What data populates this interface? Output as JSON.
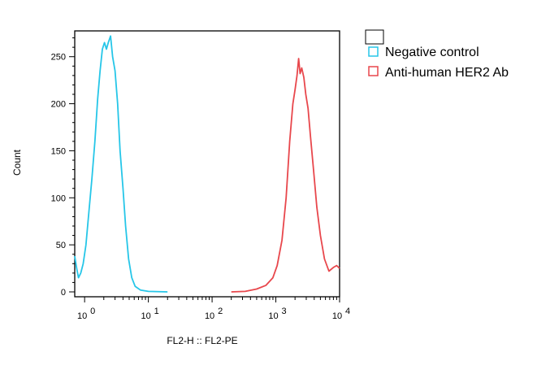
{
  "chart_data": {
    "type": "line",
    "title": "",
    "xlabel": "FL2-H :: FL2-PE",
    "ylabel": "Count",
    "x_scale": "log",
    "xlim": [
      0.7,
      10000
    ],
    "ylim": [
      0,
      280
    ],
    "y_ticks": [
      0,
      50,
      100,
      150,
      200,
      250
    ],
    "y_tick_labels": [
      "0",
      "50",
      "100",
      "150",
      "200",
      "250"
    ],
    "x_ticks": [
      1,
      10,
      100,
      1000,
      10000
    ],
    "x_tick_base": "10",
    "x_tick_exponents": [
      "0",
      "1",
      "2",
      "3",
      "4"
    ],
    "grid": false,
    "legend": "right, outside plot",
    "series": [
      {
        "name": "Negative control",
        "color": "#26C6E8",
        "points": [
          [
            0.7,
            38
          ],
          [
            0.75,
            25
          ],
          [
            0.8,
            15
          ],
          [
            0.87,
            20
          ],
          [
            0.95,
            30
          ],
          [
            1.05,
            50
          ],
          [
            1.15,
            80
          ],
          [
            1.3,
            120
          ],
          [
            1.45,
            160
          ],
          [
            1.6,
            205
          ],
          [
            1.75,
            235
          ],
          [
            1.9,
            258
          ],
          [
            2.05,
            265
          ],
          [
            2.2,
            258
          ],
          [
            2.35,
            265
          ],
          [
            2.55,
            272
          ],
          [
            2.75,
            250
          ],
          [
            3.0,
            235
          ],
          [
            3.3,
            200
          ],
          [
            3.6,
            150
          ],
          [
            4.0,
            110
          ],
          [
            4.4,
            70
          ],
          [
            4.9,
            35
          ],
          [
            5.5,
            15
          ],
          [
            6.2,
            6
          ],
          [
            7.5,
            2
          ],
          [
            10,
            0.5
          ],
          [
            20,
            0
          ]
        ]
      },
      {
        "name": "Anti-human HER2 Ab",
        "color": "#E8474C",
        "points": [
          [
            200,
            0
          ],
          [
            330,
            0.5
          ],
          [
            500,
            3
          ],
          [
            700,
            7
          ],
          [
            900,
            15
          ],
          [
            1050,
            28
          ],
          [
            1250,
            55
          ],
          [
            1450,
            100
          ],
          [
            1650,
            160
          ],
          [
            1850,
            200
          ],
          [
            2000,
            215
          ],
          [
            2150,
            230
          ],
          [
            2280,
            248
          ],
          [
            2400,
            232
          ],
          [
            2550,
            238
          ],
          [
            2750,
            228
          ],
          [
            2950,
            210
          ],
          [
            3200,
            195
          ],
          [
            3500,
            165
          ],
          [
            3900,
            130
          ],
          [
            4400,
            90
          ],
          [
            5000,
            60
          ],
          [
            5800,
            35
          ],
          [
            6800,
            22
          ],
          [
            8000,
            26
          ],
          [
            9000,
            28
          ],
          [
            10000,
            25
          ]
        ]
      }
    ]
  }
}
